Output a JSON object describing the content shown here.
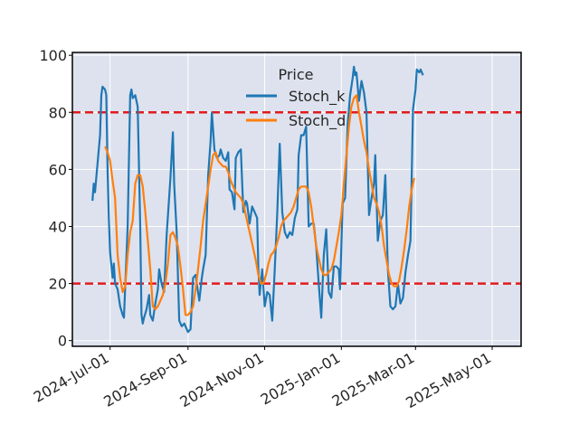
{
  "chart_data": {
    "type": "line",
    "legend": {
      "title": "Price",
      "placement": "top-center"
    },
    "colors": {
      "stoch_k": "#1f77b4",
      "stoch_d": "#ff7f0e",
      "threshold": "#e31a1c",
      "plot_bg": "#dde2ee",
      "grid": "#ffffff"
    },
    "ylim": [
      -2,
      101
    ],
    "yticks": [
      0,
      20,
      40,
      60,
      80,
      100
    ],
    "xrange": [
      "2024-06-01",
      "2025-05-24"
    ],
    "xticks": [
      {
        "date": "2024-07-01",
        "label": "2024-Jul-01"
      },
      {
        "date": "2024-09-01",
        "label": "2024-Sep-01"
      },
      {
        "date": "2024-11-01",
        "label": "2024-Nov-01"
      },
      {
        "date": "2025-01-01",
        "label": "2025-Jan-01"
      },
      {
        "date": "2025-03-01",
        "label": "2025-Mar-01"
      },
      {
        "date": "2025-05-01",
        "label": "2025-May-01"
      }
    ],
    "hlines": [
      80,
      20
    ],
    "series": [
      {
        "name": "Stoch_k",
        "points": [
          [
            "2024-06-17",
            49
          ],
          [
            "2024-06-18",
            55
          ],
          [
            "2024-06-19",
            52
          ],
          [
            "2024-06-21",
            62
          ],
          [
            "2024-06-23",
            72
          ],
          [
            "2024-06-24",
            86
          ],
          [
            "2024-06-25",
            89
          ],
          [
            "2024-06-27",
            88
          ],
          [
            "2024-06-28",
            86
          ],
          [
            "2024-06-29",
            60
          ],
          [
            "2024-06-30",
            43
          ],
          [
            "2024-07-01",
            31
          ],
          [
            "2024-07-03",
            22
          ],
          [
            "2024-07-04",
            27
          ],
          [
            "2024-07-05",
            20
          ],
          [
            "2024-07-07",
            18
          ],
          [
            "2024-07-09",
            12
          ],
          [
            "2024-07-11",
            9
          ],
          [
            "2024-07-12",
            8
          ],
          [
            "2024-07-15",
            40
          ],
          [
            "2024-07-17",
            86
          ],
          [
            "2024-07-18",
            88
          ],
          [
            "2024-07-19",
            85
          ],
          [
            "2024-07-21",
            86
          ],
          [
            "2024-07-23",
            82
          ],
          [
            "2024-07-25",
            40
          ],
          [
            "2024-07-26",
            9
          ],
          [
            "2024-07-27",
            6
          ],
          [
            "2024-07-28",
            8
          ],
          [
            "2024-07-30",
            11
          ],
          [
            "2024-08-01",
            16
          ],
          [
            "2024-08-02",
            9
          ],
          [
            "2024-08-04",
            7
          ],
          [
            "2024-08-06",
            13
          ],
          [
            "2024-08-08",
            18
          ],
          [
            "2024-08-09",
            25
          ],
          [
            "2024-08-11",
            20
          ],
          [
            "2024-08-13",
            17
          ],
          [
            "2024-08-15",
            37
          ],
          [
            "2024-08-18",
            57
          ],
          [
            "2024-08-20",
            73
          ],
          [
            "2024-08-21",
            55
          ],
          [
            "2024-08-23",
            38
          ],
          [
            "2024-08-25",
            7
          ],
          [
            "2024-08-27",
            5
          ],
          [
            "2024-08-29",
            6
          ],
          [
            "2024-09-01",
            3
          ],
          [
            "2024-09-03",
            4
          ],
          [
            "2024-09-05",
            22
          ],
          [
            "2024-09-07",
            23
          ],
          [
            "2024-09-08",
            20
          ],
          [
            "2024-09-10",
            14
          ],
          [
            "2024-09-12",
            22
          ],
          [
            "2024-09-13",
            25
          ],
          [
            "2024-09-15",
            30
          ],
          [
            "2024-09-17",
            58
          ],
          [
            "2024-09-19",
            70
          ],
          [
            "2024-09-20",
            80
          ],
          [
            "2024-09-22",
            67
          ],
          [
            "2024-09-24",
            64
          ],
          [
            "2024-09-26",
            65
          ],
          [
            "2024-09-27",
            67
          ],
          [
            "2024-09-29",
            64
          ],
          [
            "2024-10-01",
            63
          ],
          [
            "2024-10-03",
            66
          ],
          [
            "2024-10-04",
            53
          ],
          [
            "2024-10-06",
            52
          ],
          [
            "2024-10-08",
            46
          ],
          [
            "2024-10-09",
            64
          ],
          [
            "2024-10-11",
            66
          ],
          [
            "2024-10-13",
            67
          ],
          [
            "2024-10-15",
            45
          ],
          [
            "2024-10-17",
            49
          ],
          [
            "2024-10-18",
            48
          ],
          [
            "2024-10-20",
            41
          ],
          [
            "2024-10-22",
            47
          ],
          [
            "2024-10-24",
            45
          ],
          [
            "2024-10-26",
            43
          ],
          [
            "2024-10-27",
            25
          ],
          [
            "2024-10-28",
            16
          ],
          [
            "2024-10-30",
            25
          ],
          [
            "2024-11-01",
            12
          ],
          [
            "2024-11-03",
            17
          ],
          [
            "2024-11-05",
            16
          ],
          [
            "2024-11-07",
            7
          ],
          [
            "2024-11-09",
            25
          ],
          [
            "2024-11-11",
            45
          ],
          [
            "2024-11-13",
            69
          ],
          [
            "2024-11-15",
            45
          ],
          [
            "2024-11-17",
            38
          ],
          [
            "2024-11-19",
            36
          ],
          [
            "2024-11-21",
            38
          ],
          [
            "2024-11-23",
            37
          ],
          [
            "2024-11-25",
            43
          ],
          [
            "2024-11-27",
            46
          ],
          [
            "2024-11-28",
            65
          ],
          [
            "2024-11-30",
            72
          ],
          [
            "2024-12-02",
            72
          ],
          [
            "2024-12-04",
            75
          ],
          [
            "2024-12-06",
            40
          ],
          [
            "2024-12-08",
            41
          ],
          [
            "2024-12-10",
            41
          ],
          [
            "2024-12-12",
            33
          ],
          [
            "2024-12-14",
            20
          ],
          [
            "2024-12-16",
            8
          ],
          [
            "2024-12-18",
            30
          ],
          [
            "2024-12-20",
            39
          ],
          [
            "2024-12-22",
            17
          ],
          [
            "2024-12-24",
            15
          ],
          [
            "2024-12-26",
            26
          ],
          [
            "2024-12-28",
            26
          ],
          [
            "2024-12-30",
            25
          ],
          [
            "2024-12-31",
            18
          ],
          [
            "2025-01-02",
            48
          ],
          [
            "2025-01-04",
            50
          ],
          [
            "2025-01-06",
            76
          ],
          [
            "2025-01-08",
            86
          ],
          [
            "2025-01-10",
            92
          ],
          [
            "2025-01-11",
            96
          ],
          [
            "2025-01-12",
            93
          ],
          [
            "2025-01-13",
            94
          ],
          [
            "2025-01-15",
            84
          ],
          [
            "2025-01-17",
            91
          ],
          [
            "2025-01-19",
            87
          ],
          [
            "2025-01-21",
            80
          ],
          [
            "2025-01-23",
            44
          ],
          [
            "2025-01-25",
            50
          ],
          [
            "2025-01-27",
            55
          ],
          [
            "2025-01-28",
            65
          ],
          [
            "2025-01-30",
            35
          ],
          [
            "2025-02-01",
            42
          ],
          [
            "2025-02-03",
            44
          ],
          [
            "2025-02-05",
            58
          ],
          [
            "2025-02-07",
            25
          ],
          [
            "2025-02-09",
            12
          ],
          [
            "2025-02-11",
            11
          ],
          [
            "2025-02-13",
            12
          ],
          [
            "2025-02-15",
            20
          ],
          [
            "2025-02-17",
            13
          ],
          [
            "2025-02-19",
            15
          ],
          [
            "2025-02-21",
            24
          ],
          [
            "2025-02-23",
            30
          ],
          [
            "2025-02-25",
            35
          ],
          [
            "2025-02-27",
            81
          ],
          [
            "2025-03-01",
            88
          ],
          [
            "2025-03-02",
            95
          ],
          [
            "2025-03-04",
            94
          ],
          [
            "2025-03-05",
            95
          ],
          [
            "2025-03-07",
            93
          ]
        ]
      },
      {
        "name": "Stoch_d",
        "points": [
          [
            "2024-06-27",
            68
          ],
          [
            "2024-06-29",
            66
          ],
          [
            "2024-07-01",
            63
          ],
          [
            "2024-07-03",
            56
          ],
          [
            "2024-07-05",
            50
          ],
          [
            "2024-07-07",
            30
          ],
          [
            "2024-07-09",
            22
          ],
          [
            "2024-07-11",
            17
          ],
          [
            "2024-07-13",
            19
          ],
          [
            "2024-07-15",
            30
          ],
          [
            "2024-07-17",
            38
          ],
          [
            "2024-07-19",
            42
          ],
          [
            "2024-07-21",
            55
          ],
          [
            "2024-07-23",
            58
          ],
          [
            "2024-07-25",
            58
          ],
          [
            "2024-07-27",
            54
          ],
          [
            "2024-07-29",
            45
          ],
          [
            "2024-07-31",
            35
          ],
          [
            "2024-08-02",
            25
          ],
          [
            "2024-08-04",
            12
          ],
          [
            "2024-08-06",
            11
          ],
          [
            "2024-08-08",
            12
          ],
          [
            "2024-08-10",
            14
          ],
          [
            "2024-08-12",
            16
          ],
          [
            "2024-08-14",
            20
          ],
          [
            "2024-08-16",
            27
          ],
          [
            "2024-08-18",
            37
          ],
          [
            "2024-08-20",
            38
          ],
          [
            "2024-08-22",
            36
          ],
          [
            "2024-08-24",
            33
          ],
          [
            "2024-08-26",
            26
          ],
          [
            "2024-08-28",
            18
          ],
          [
            "2024-08-30",
            9
          ],
          [
            "2024-09-01",
            9
          ],
          [
            "2024-09-03",
            10
          ],
          [
            "2024-09-05",
            12
          ],
          [
            "2024-09-07",
            18
          ],
          [
            "2024-09-09",
            25
          ],
          [
            "2024-09-11",
            33
          ],
          [
            "2024-09-13",
            42
          ],
          [
            "2024-09-15",
            48
          ],
          [
            "2024-09-17",
            54
          ],
          [
            "2024-09-19",
            60
          ],
          [
            "2024-09-21",
            65
          ],
          [
            "2024-09-23",
            66
          ],
          [
            "2024-09-25",
            63
          ],
          [
            "2024-09-27",
            62
          ],
          [
            "2024-09-29",
            61
          ],
          [
            "2024-10-01",
            61
          ],
          [
            "2024-10-03",
            59
          ],
          [
            "2024-10-05",
            56
          ],
          [
            "2024-10-07",
            54
          ],
          [
            "2024-10-09",
            52
          ],
          [
            "2024-10-11",
            51
          ],
          [
            "2024-10-13",
            50
          ],
          [
            "2024-10-15",
            48
          ],
          [
            "2024-10-17",
            44
          ],
          [
            "2024-10-19",
            40
          ],
          [
            "2024-10-21",
            36
          ],
          [
            "2024-10-23",
            32
          ],
          [
            "2024-10-25",
            28
          ],
          [
            "2024-10-27",
            23
          ],
          [
            "2024-10-29",
            20
          ],
          [
            "2024-10-31",
            20
          ],
          [
            "2024-11-02",
            23
          ],
          [
            "2024-11-04",
            27
          ],
          [
            "2024-11-06",
            30
          ],
          [
            "2024-11-08",
            31
          ],
          [
            "2024-11-10",
            33
          ],
          [
            "2024-11-12",
            36
          ],
          [
            "2024-11-14",
            40
          ],
          [
            "2024-11-16",
            42
          ],
          [
            "2024-11-18",
            43
          ],
          [
            "2024-11-20",
            44
          ],
          [
            "2024-11-22",
            45
          ],
          [
            "2024-11-24",
            47
          ],
          [
            "2024-11-26",
            50
          ],
          [
            "2024-11-28",
            53
          ],
          [
            "2024-11-30",
            54
          ],
          [
            "2024-12-02",
            54
          ],
          [
            "2024-12-04",
            54
          ],
          [
            "2024-12-06",
            52
          ],
          [
            "2024-12-08",
            47
          ],
          [
            "2024-12-10",
            40
          ],
          [
            "2024-12-12",
            33
          ],
          [
            "2024-12-14",
            29
          ],
          [
            "2024-12-16",
            25
          ],
          [
            "2024-12-18",
            23
          ],
          [
            "2024-12-20",
            23
          ],
          [
            "2024-12-22",
            24
          ],
          [
            "2024-12-24",
            25
          ],
          [
            "2024-12-26",
            28
          ],
          [
            "2024-12-28",
            33
          ],
          [
            "2024-12-30",
            38
          ],
          [
            "2025-01-01",
            44
          ],
          [
            "2025-01-03",
            55
          ],
          [
            "2025-01-05",
            65
          ],
          [
            "2025-01-07",
            75
          ],
          [
            "2025-01-09",
            82
          ],
          [
            "2025-01-11",
            85
          ],
          [
            "2025-01-13",
            86
          ],
          [
            "2025-01-15",
            80
          ],
          [
            "2025-01-17",
            75
          ],
          [
            "2025-01-19",
            70
          ],
          [
            "2025-01-21",
            66
          ],
          [
            "2025-01-23",
            60
          ],
          [
            "2025-01-25",
            55
          ],
          [
            "2025-01-27",
            50
          ],
          [
            "2025-01-29",
            48
          ],
          [
            "2025-01-31",
            45
          ],
          [
            "2025-02-02",
            40
          ],
          [
            "2025-02-04",
            33
          ],
          [
            "2025-02-06",
            28
          ],
          [
            "2025-02-08",
            23
          ],
          [
            "2025-02-10",
            20
          ],
          [
            "2025-02-12",
            19
          ],
          [
            "2025-02-14",
            19
          ],
          [
            "2025-02-16",
            21
          ],
          [
            "2025-02-18",
            26
          ],
          [
            "2025-02-20",
            32
          ],
          [
            "2025-02-22",
            39
          ],
          [
            "2025-02-24",
            47
          ],
          [
            "2025-02-26",
            53
          ],
          [
            "2025-02-28",
            57
          ]
        ]
      }
    ]
  }
}
